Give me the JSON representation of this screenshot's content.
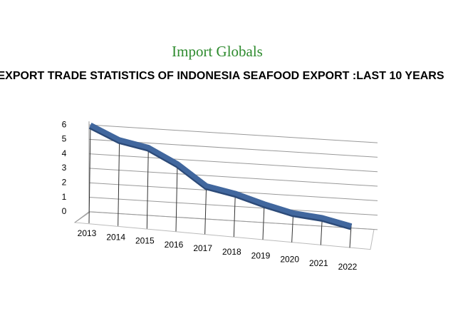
{
  "logo": "Import Globals",
  "chart_data": {
    "type": "line",
    "title": "EXPORT TRADE STATISTICS OF INDONESIA SEAFOOD EXPORT :LAST 10 YEARS",
    "categories": [
      "2013",
      "2014",
      "2015",
      "2016",
      "2017",
      "2018",
      "2019",
      "2020",
      "2021",
      "2022"
    ],
    "values": [
      6,
      5.1,
      4.7,
      3.7,
      2.3,
      1.9,
      1.3,
      0.8,
      0.6,
      0.15
    ],
    "color": "#41679e",
    "ylim": [
      0,
      6
    ],
    "yticks": [
      0,
      1,
      2,
      3,
      4,
      5,
      6
    ],
    "grid": true
  }
}
